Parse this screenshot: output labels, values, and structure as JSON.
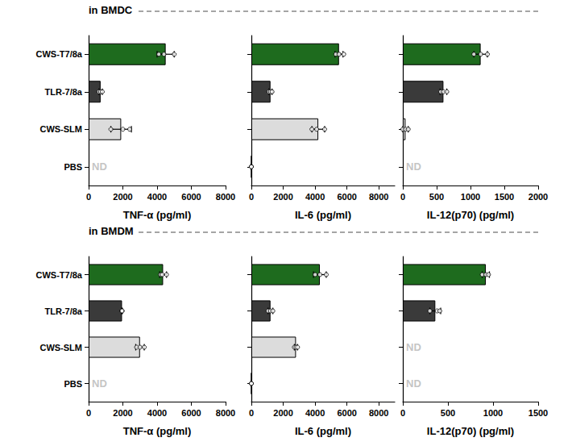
{
  "chart_data": [
    {
      "type": "bar",
      "orientation": "horizontal",
      "title": "in BMDC",
      "x_label": "TNF-α (pg/ml)",
      "categories": [
        "CWS-T7/8a",
        "TLR-7/8a",
        "CWS-SLM",
        "PBS"
      ],
      "values": [
        4500,
        700,
        1900,
        null
      ],
      "errors": [
        500,
        100,
        600,
        null
      ],
      "points": [
        [
          4100,
          4400,
          5000
        ],
        [
          600,
          700,
          800
        ],
        [
          1300,
          2000,
          2400
        ],
        []
      ],
      "colors": [
        "#1e6b1e",
        "#3a3a3a",
        "#dcdcdc",
        "#ffffff"
      ],
      "annotations": [
        {
          "category": "PBS",
          "text": "ND"
        }
      ],
      "xlim": [
        0,
        8000
      ],
      "xticks": [
        0,
        2000,
        4000,
        6000,
        8000
      ],
      "grid": false
    },
    {
      "type": "bar",
      "orientation": "horizontal",
      "x_label": "IL-6 (pg/ml)",
      "tick_labels": "x",
      "categories": [
        "CWS-T7/8a",
        "TLR-7/8a",
        "CWS-SLM",
        "PBS"
      ],
      "values": [
        5500,
        1200,
        4200,
        0
      ],
      "errors": [
        250,
        100,
        400,
        0
      ],
      "points": [
        [
          5300,
          5500,
          5800
        ],
        [
          1100,
          1200,
          1300
        ],
        [
          3800,
          4100,
          4600
        ],
        [
          0,
          0,
          0
        ]
      ],
      "colors": [
        "#1e6b1e",
        "#3a3a3a",
        "#dcdcdc",
        "#ffffff"
      ],
      "xlim": [
        0,
        9000
      ],
      "xticks": [
        0,
        2000,
        4000,
        6000,
        8000
      ],
      "grid": false
    },
    {
      "type": "bar",
      "orientation": "horizontal",
      "x_label": "IL-12(p70) (pg/ml)",
      "tick_labels": "x",
      "categories": [
        "CWS-T7/8a",
        "TLR-7/8a",
        "CWS-SLM",
        "PBS"
      ],
      "values": [
        1150,
        600,
        40,
        null
      ],
      "errors": [
        100,
        50,
        40,
        null
      ],
      "points": [
        [
          1050,
          1150,
          1250
        ],
        [
          560,
          600,
          650
        ],
        [
          0,
          40,
          80
        ],
        []
      ],
      "colors": [
        "#1e6b1e",
        "#3a3a3a",
        "#dcdcdc",
        "#ffffff"
      ],
      "annotations": [
        {
          "category": "PBS",
          "text": "ND"
        }
      ],
      "xlim": [
        0,
        2000
      ],
      "xticks": [
        0,
        500,
        1000,
        1500,
        2000
      ],
      "grid": false
    },
    {
      "type": "bar",
      "orientation": "horizontal",
      "title": "in BMDM",
      "x_label": "TNF-α (pg/ml)",
      "categories": [
        "CWS-T7/8a",
        "TLR-7/8a",
        "CWS-SLM",
        "PBS"
      ],
      "values": [
        4350,
        1950,
        3000,
        null
      ],
      "errors": [
        200,
        20,
        250,
        null
      ],
      "points": [
        [
          4200,
          4300,
          4550
        ],
        [
          1950,
          1950,
          1950
        ],
        [
          2800,
          3000,
          3250
        ],
        []
      ],
      "colors": [
        "#1e6b1e",
        "#3a3a3a",
        "#dcdcdc",
        "#ffffff"
      ],
      "annotations": [
        {
          "category": "PBS",
          "text": "ND"
        }
      ],
      "xlim": [
        0,
        8000
      ],
      "xticks": [
        0,
        2000,
        4000,
        6000,
        8000
      ],
      "grid": false
    },
    {
      "type": "bar",
      "orientation": "horizontal",
      "x_label": "IL-6 (pg/ml)",
      "tick_labels": "x",
      "categories": [
        "CWS-T7/8a",
        "TLR-7/8a",
        "CWS-SLM",
        "PBS"
      ],
      "values": [
        4300,
        1200,
        2800,
        0
      ],
      "errors": [
        400,
        150,
        100,
        0
      ],
      "points": [
        [
          4000,
          4300,
          4700
        ],
        [
          1050,
          1200,
          1350
        ],
        [
          2700,
          2800,
          2900
        ],
        [
          0,
          0,
          0
        ]
      ],
      "colors": [
        "#1e6b1e",
        "#3a3a3a",
        "#dcdcdc",
        "#ffffff"
      ],
      "xlim": [
        0,
        9000
      ],
      "xticks": [
        0,
        2000,
        4000,
        6000,
        8000
      ],
      "grid": false
    },
    {
      "type": "bar",
      "orientation": "horizontal",
      "x_label": "IL-12(p70) (pg/ml)",
      "tick_labels": "x",
      "categories": [
        "CWS-T7/8a",
        "TLR-7/8a",
        "CWS-SLM",
        "PBS"
      ],
      "values": [
        920,
        360,
        null,
        null
      ],
      "errors": [
        40,
        60,
        null,
        null
      ],
      "points": [
        [
          880,
          920,
          950
        ],
        [
          300,
          380,
          410
        ],
        [],
        []
      ],
      "colors": [
        "#1e6b1e",
        "#3a3a3a",
        "#dcdcdc",
        "#ffffff"
      ],
      "annotations": [
        {
          "category": "CWS-SLM",
          "text": "ND"
        },
        {
          "category": "PBS",
          "text": "ND"
        }
      ],
      "xlim": [
        0,
        1500
      ],
      "xticks": [
        0,
        500,
        1000,
        1500
      ],
      "grid": false
    }
  ]
}
